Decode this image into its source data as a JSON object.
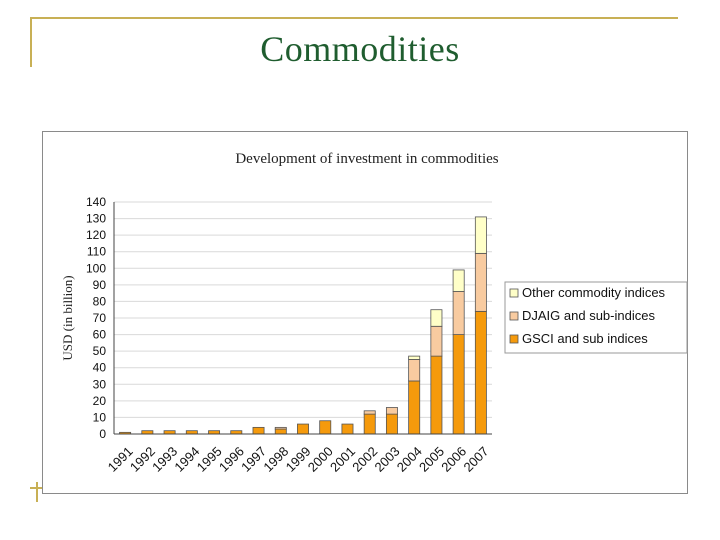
{
  "slide": {
    "title": "Commodities"
  },
  "chart_data": {
    "type": "bar",
    "stacked": true,
    "title": "Development of investment in commodities",
    "xlabel": "",
    "ylabel": "USD (in billion)",
    "ylim": [
      0,
      140
    ],
    "yticks": [
      0,
      10,
      20,
      30,
      40,
      50,
      60,
      70,
      80,
      90,
      100,
      110,
      120,
      130,
      140
    ],
    "grid": true,
    "legend_position": "right",
    "categories": [
      "1991",
      "1992",
      "1993",
      "1994",
      "1995",
      "1996",
      "1997",
      "1998",
      "1999",
      "2000",
      "2001",
      "2002",
      "2003",
      "2004",
      "2005",
      "2006",
      "2007"
    ],
    "series": [
      {
        "name": "GSCI and sub indices",
        "color": "#f59a0c",
        "values": [
          1,
          2,
          2,
          2,
          2,
          2,
          4,
          3,
          6,
          8,
          6,
          12,
          12,
          32,
          47,
          60,
          74
        ]
      },
      {
        "name": "DJAIG and sub-indices",
        "color": "#f8cba0",
        "values": [
          0,
          0,
          0,
          0,
          0,
          0,
          0,
          1,
          0,
          0,
          0,
          2,
          4,
          13,
          18,
          26,
          35
        ]
      },
      {
        "name": "Other commodity indices",
        "color": "#ffffc8",
        "values": [
          0,
          0,
          0,
          0,
          0,
          0,
          0,
          0,
          0,
          0,
          0,
          0,
          0,
          2,
          10,
          13,
          22
        ]
      }
    ]
  }
}
